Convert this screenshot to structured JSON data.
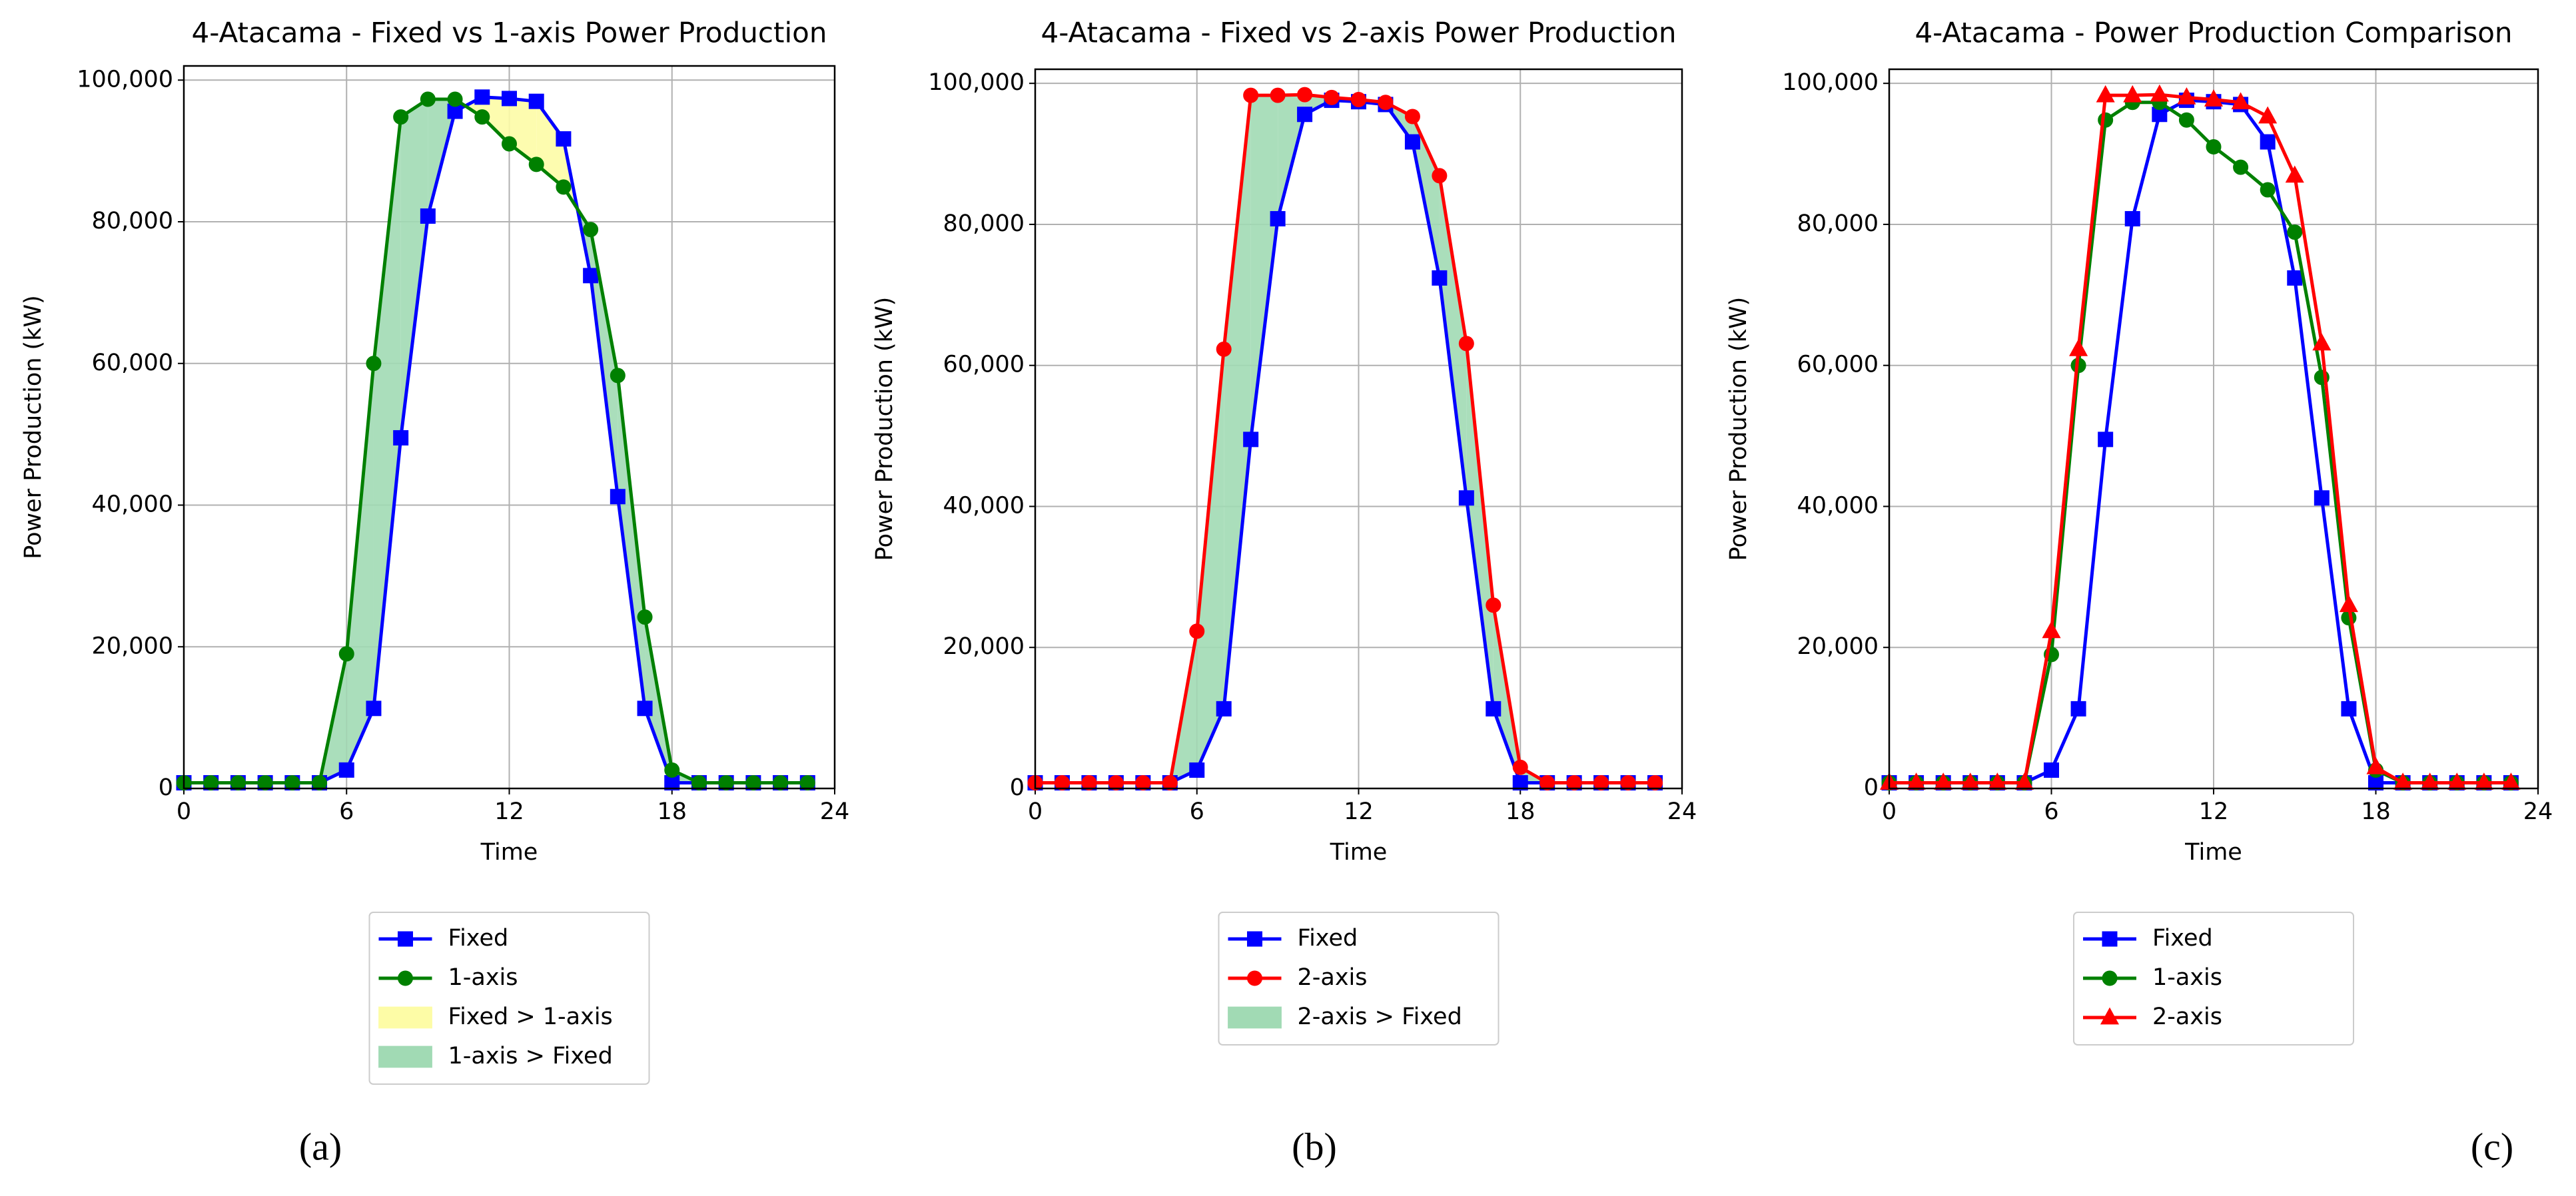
{
  "chart_data": [
    {
      "type": "line",
      "title": "4-Atacama - Fixed vs 1-axis Power Production",
      "xlabel": "Time",
      "ylabel": "Power Production (kW)",
      "caption": "(a)",
      "x": [
        0,
        1,
        2,
        3,
        4,
        5,
        6,
        7,
        8,
        9,
        10,
        11,
        12,
        13,
        14,
        15,
        16,
        17,
        18,
        19,
        20,
        21,
        22,
        23
      ],
      "series": [
        {
          "name": "Fixed",
          "color": "#0000ff",
          "marker": "square",
          "values": [
            800,
            800,
            800,
            800,
            800,
            800,
            2600,
            11300,
            49500,
            80800,
            95600,
            97600,
            97400,
            97000,
            91700,
            72400,
            41200,
            11300,
            800,
            800,
            800,
            800,
            800,
            800
          ]
        },
        {
          "name": "1-axis",
          "color": "#008000",
          "marker": "circle",
          "values": [
            800,
            800,
            800,
            800,
            800,
            800,
            19000,
            60000,
            94800,
            97300,
            97300,
            94800,
            91000,
            88100,
            84900,
            78900,
            58300,
            24200,
            2600,
            800,
            800,
            800,
            800,
            800
          ]
        }
      ],
      "fills": [
        {
          "name": "Fixed > 1-axis",
          "color": "#fdfca6"
        },
        {
          "name": "1-axis > Fixed",
          "color": "#a1dab4"
        }
      ],
      "xlim": [
        0,
        24
      ],
      "xticks": [
        0,
        6,
        12,
        18,
        24
      ],
      "ylim": [
        0,
        102000
      ],
      "yticks": [
        0,
        {
          "value": 20000,
          "label": "20,000"
        },
        {
          "value": 40000,
          "label": "40,000"
        },
        {
          "value": 60000,
          "label": "60,000"
        },
        {
          "value": 80000,
          "label": "80,000"
        },
        {
          "value": 100000,
          "label": "100,000"
        }
      ],
      "grid": true
    },
    {
      "type": "line",
      "title": "4-Atacama - Fixed vs 2-axis Power Production",
      "xlabel": "Time",
      "ylabel": "Power Production (kW)",
      "caption": "(b)",
      "x": [
        0,
        1,
        2,
        3,
        4,
        5,
        6,
        7,
        8,
        9,
        10,
        11,
        12,
        13,
        14,
        15,
        16,
        17,
        18,
        19,
        20,
        21,
        22,
        23
      ],
      "series": [
        {
          "name": "Fixed",
          "color": "#0000ff",
          "marker": "square",
          "values": [
            800,
            800,
            800,
            800,
            800,
            800,
            2600,
            11300,
            49500,
            80800,
            95600,
            97600,
            97400,
            97000,
            91700,
            72400,
            41200,
            11300,
            800,
            800,
            800,
            800,
            800,
            800
          ]
        },
        {
          "name": "2-axis",
          "color": "#ff0000",
          "marker": "circle",
          "values": [
            800,
            800,
            800,
            800,
            800,
            800,
            22300,
            62300,
            98300,
            98300,
            98400,
            98000,
            97700,
            97300,
            95300,
            86900,
            63100,
            26000,
            3000,
            800,
            800,
            800,
            800,
            800
          ]
        }
      ],
      "fills": [
        {
          "name": "2-axis > Fixed",
          "color": "#a1dab4"
        }
      ],
      "xlim": [
        0,
        24
      ],
      "xticks": [
        0,
        6,
        12,
        18,
        24
      ],
      "ylim": [
        0,
        102000
      ],
      "yticks": [
        0,
        {
          "value": 20000,
          "label": "20,000"
        },
        {
          "value": 40000,
          "label": "40,000"
        },
        {
          "value": 60000,
          "label": "60,000"
        },
        {
          "value": 80000,
          "label": "80,000"
        },
        {
          "value": 100000,
          "label": "100,000"
        }
      ],
      "grid": true
    },
    {
      "type": "line",
      "title": "4-Atacama - Power Production Comparison",
      "xlabel": "Time",
      "ylabel": "Power Production (kW)",
      "caption": "(c)",
      "x": [
        0,
        1,
        2,
        3,
        4,
        5,
        6,
        7,
        8,
        9,
        10,
        11,
        12,
        13,
        14,
        15,
        16,
        17,
        18,
        19,
        20,
        21,
        22,
        23
      ],
      "series": [
        {
          "name": "Fixed",
          "color": "#0000ff",
          "marker": "square",
          "values": [
            800,
            800,
            800,
            800,
            800,
            800,
            2600,
            11300,
            49500,
            80800,
            95600,
            97600,
            97400,
            97000,
            91700,
            72400,
            41200,
            11300,
            800,
            800,
            800,
            800,
            800,
            800
          ]
        },
        {
          "name": "1-axis",
          "color": "#008000",
          "marker": "circle",
          "values": [
            800,
            800,
            800,
            800,
            800,
            800,
            19000,
            60000,
            94800,
            97300,
            97300,
            94800,
            91000,
            88100,
            84900,
            78900,
            58300,
            24200,
            2600,
            800,
            800,
            800,
            800,
            800
          ]
        },
        {
          "name": "2-axis",
          "color": "#ff0000",
          "marker": "triangle",
          "values": [
            800,
            800,
            800,
            800,
            800,
            800,
            22300,
            62300,
            98300,
            98300,
            98400,
            98000,
            97700,
            97300,
            95300,
            86900,
            63100,
            26000,
            3000,
            800,
            800,
            800,
            800,
            800
          ]
        }
      ],
      "xlim": [
        0,
        24
      ],
      "xticks": [
        0,
        6,
        12,
        18,
        24
      ],
      "ylim": [
        0,
        102000
      ],
      "yticks": [
        0,
        {
          "value": 20000,
          "label": "20,000"
        },
        {
          "value": 40000,
          "label": "40,000"
        },
        {
          "value": 60000,
          "label": "60,000"
        },
        {
          "value": 80000,
          "label": "80,000"
        },
        {
          "value": 100000,
          "label": "100,000"
        }
      ],
      "grid": true
    }
  ]
}
